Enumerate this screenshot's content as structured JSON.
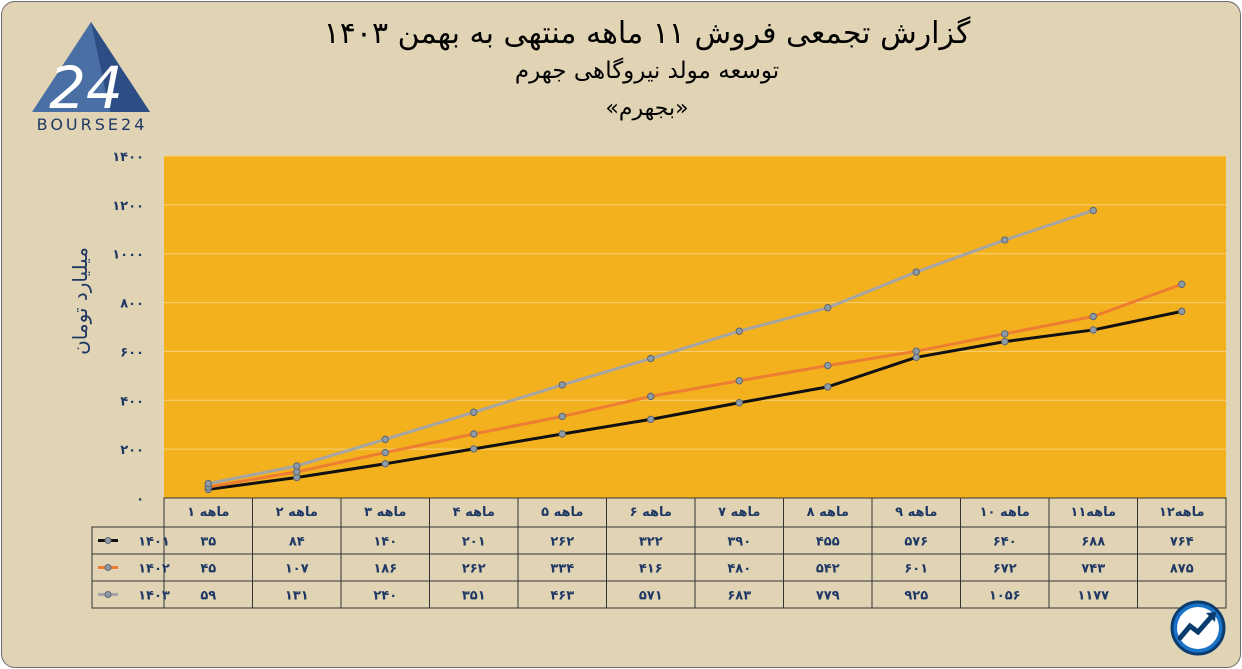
{
  "header": {
    "title": "گزارش تجمعی فروش ۱۱ ماهه منتهی به بهمن ۱۴۰۳",
    "subtitle": "توسعه مولد نیروگاهی جهرم",
    "symbol": "«بجهرم»"
  },
  "logo": {
    "text": "BOURSE24",
    "mark": "24"
  },
  "colors": {
    "background": "#e0d4b5",
    "plot": "#f4b11e",
    "text": "#1f3864",
    "s1401": "#111111",
    "s1402": "#ed7d31",
    "s1403": "#a5a5a5"
  },
  "chart_data": {
    "type": "line",
    "ylabel": "میلیارد تومان",
    "ylim": [
      0,
      1400
    ],
    "yticks": [
      0,
      200,
      400,
      600,
      800,
      1000,
      1200,
      1400
    ],
    "ytick_labels": [
      "۰",
      "۲۰۰",
      "۴۰۰",
      "۶۰۰",
      "۸۰۰",
      "۱۰۰۰",
      "۱۲۰۰",
      "۱۴۰۰"
    ],
    "grid": true,
    "categories": [
      "۱ ماهه",
      "۲ ماهه",
      "۳ ماهه",
      "۴ ماهه",
      "۵ ماهه",
      "۶ ماهه",
      "۷ ماهه",
      "۸ ماهه",
      "۹ ماهه",
      "۱۰ ماهه",
      "۱۱ماهه",
      "۱۲ماهه"
    ],
    "series": [
      {
        "name": "۱۴۰۱",
        "color": "#111111",
        "values": [
          35,
          84,
          140,
          201,
          262,
          322,
          390,
          455,
          576,
          640,
          688,
          764
        ],
        "labels": [
          "۳۵",
          "۸۴",
          "۱۴۰",
          "۲۰۱",
          "۲۶۲",
          "۳۲۲",
          "۳۹۰",
          "۴۵۵",
          "۵۷۶",
          "۶۴۰",
          "۶۸۸",
          "۷۶۴"
        ]
      },
      {
        "name": "۱۴۰۲",
        "color": "#ed7d31",
        "values": [
          45,
          107,
          186,
          262,
          334,
          416,
          480,
          542,
          601,
          672,
          743,
          875
        ],
        "labels": [
          "۴۵",
          "۱۰۷",
          "۱۸۶",
          "۲۶۲",
          "۳۳۴",
          "۴۱۶",
          "۴۸۰",
          "۵۴۲",
          "۶۰۱",
          "۶۷۲",
          "۷۴۳",
          "۸۷۵"
        ]
      },
      {
        "name": "۱۴۰۳",
        "color": "#a5a5a5",
        "values": [
          59,
          131,
          240,
          351,
          463,
          571,
          683,
          779,
          925,
          1056,
          1177,
          null
        ],
        "labels": [
          "۵۹",
          "۱۳۱",
          "۲۴۰",
          "۳۵۱",
          "۴۶۳",
          "۵۷۱",
          "۶۸۳",
          "۷۷۹",
          "۹۲۵",
          "۱۰۵۶",
          "۱۱۷۷",
          ""
        ]
      }
    ]
  }
}
